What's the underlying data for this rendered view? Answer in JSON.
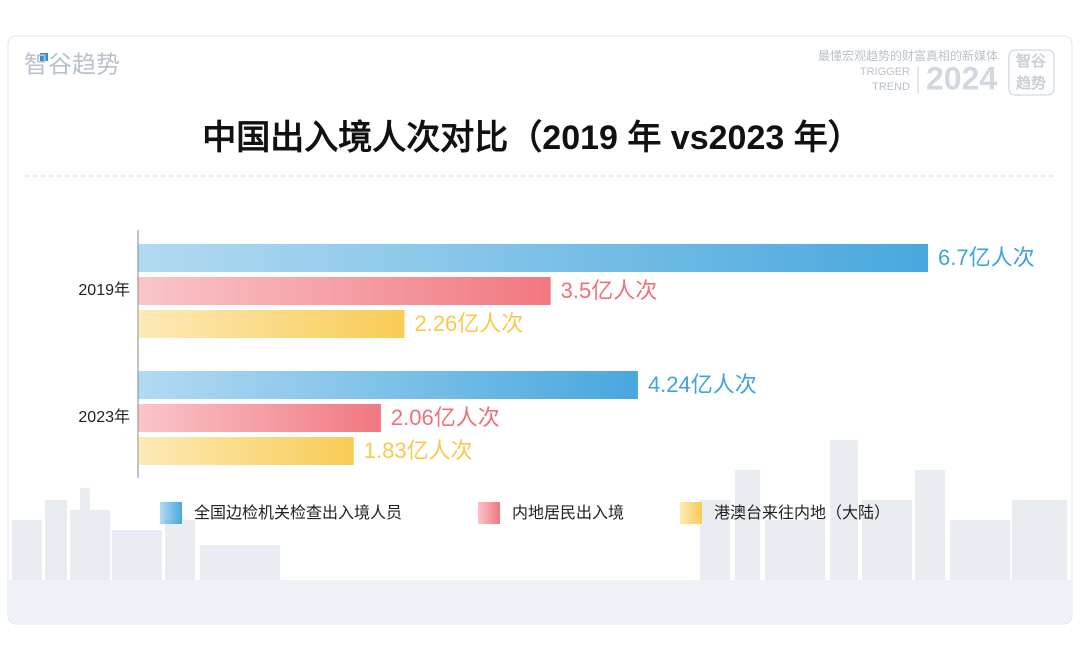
{
  "brand": {
    "logo": "智谷趋势",
    "slogan": "最懂宏观趋势的财富真相的新媒体",
    "tag1": "TRIGGER",
    "tag2": "TREND",
    "year": "2024",
    "badge_top": "智谷",
    "badge_bottom": "趋势"
  },
  "chart_data": {
    "type": "hbar",
    "title": "中国出入境人次对比（2019 年 vs2023 年）",
    "categories": [
      "2019年",
      "2023年"
    ],
    "series": [
      {
        "name": "全国边检机关检查出入境人员",
        "color": "#3fa3dc",
        "values": [
          6.7,
          4.24
        ],
        "value_labels": [
          "6.7亿人次",
          "4.24亿人次"
        ]
      },
      {
        "name": "内地居民出入境",
        "color": "#f0707a",
        "values": [
          3.5,
          2.06
        ],
        "value_labels": [
          "3.5亿人次",
          "2.06亿人次"
        ]
      },
      {
        "name": "港澳台来往内地（大陆）",
        "color": "#f8c94c",
        "values": [
          2.26,
          1.83
        ],
        "value_labels": [
          "2.26亿人次",
          "1.83亿人次"
        ]
      }
    ]
  }
}
